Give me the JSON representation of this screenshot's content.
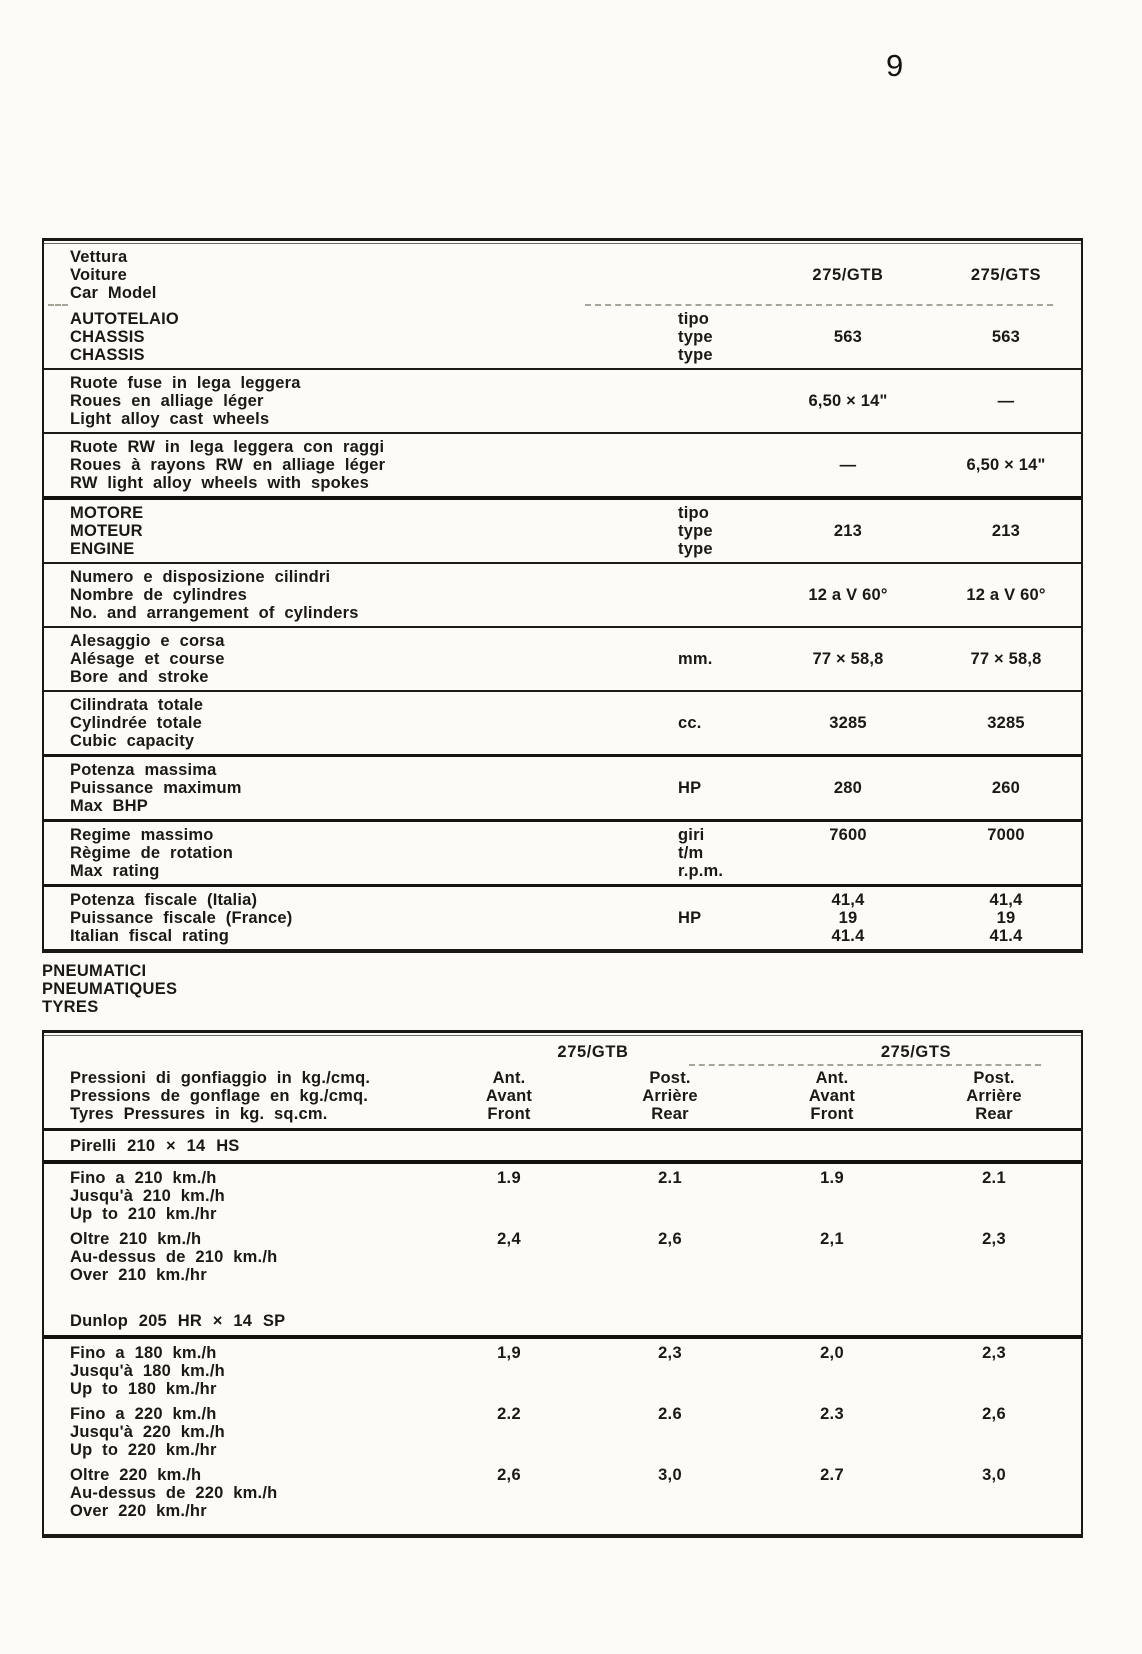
{
  "page_number": "9",
  "colors": {
    "ink": "#1a1915",
    "paper": "#fcfbf8",
    "faint": "#a8a499"
  },
  "spec_table": {
    "rows": [
      {
        "labels": [
          "Vettura",
          "Voiture",
          "Car Model"
        ],
        "units": [],
        "gtb": [
          "275/GTB"
        ],
        "gts": [
          "275/GTS"
        ],
        "sep": "dashed",
        "header": true
      },
      {
        "labels": [
          "AUTOTELAIO",
          "CHASSIS",
          "CHASSIS"
        ],
        "units": [
          "tipo",
          "type",
          "type"
        ],
        "gtb": [
          "563"
        ],
        "gts": [
          "563"
        ],
        "sep": "thin"
      },
      {
        "labels": [
          "Ruote fuse in lega leggera",
          "Roues en alliage léger",
          "Light alloy cast wheels"
        ],
        "units": [],
        "gtb": [
          "6,50 × 14\""
        ],
        "gts": [
          "—"
        ],
        "sep": "thin"
      },
      {
        "labels": [
          "Ruote RW in lega leggera con raggi",
          "Roues à rayons RW en alliage léger",
          "RW light alloy wheels with spokes"
        ],
        "units": [],
        "gtb": [
          "—"
        ],
        "gts": [
          "6,50 × 14\""
        ],
        "sep": "heavy"
      },
      {
        "labels": [
          "MOTORE",
          "MOTEUR",
          "ENGINE"
        ],
        "units": [
          "tipo",
          "type",
          "type"
        ],
        "gtb": [
          "213"
        ],
        "gts": [
          "213"
        ],
        "sep": "thin"
      },
      {
        "labels": [
          "Numero e disposizione cilindri",
          "Nombre de cylindres",
          "No. and arrangement of cylinders"
        ],
        "units": [],
        "gtb": [
          "12 a V 60°"
        ],
        "gts": [
          "12 a V 60°"
        ],
        "sep": "thin"
      },
      {
        "labels": [
          "Alesaggio e corsa",
          "Alésage et course",
          "Bore and stroke"
        ],
        "units": [
          "mm."
        ],
        "gtb": [
          "77 × 58,8"
        ],
        "gts": [
          "77 × 58,8"
        ],
        "sep": "thin"
      },
      {
        "labels": [
          "Cilindrata totale",
          "Cylindrée totale",
          "Cubic capacity"
        ],
        "units": [
          "cc."
        ],
        "gtb": [
          "3285"
        ],
        "gts": [
          "3285"
        ],
        "sep": "medium"
      },
      {
        "labels": [
          "Potenza massima",
          "Puissance maximum",
          "Max BHP"
        ],
        "units": [
          "HP"
        ],
        "gtb": [
          "280"
        ],
        "gts": [
          "260"
        ],
        "sep": "medium"
      },
      {
        "labels": [
          "Regime massimo",
          "Règime de rotation",
          "Max rating"
        ],
        "units": [
          "giri",
          "t/m",
          "r.p.m."
        ],
        "gtb": [
          "7600"
        ],
        "gts": [
          "7000"
        ],
        "sep": "medium",
        "value_align": "top"
      },
      {
        "labels": [
          "Potenza fiscale (Italia)",
          "Puissance fiscale (France)",
          "Italian fiscal rating"
        ],
        "units": [
          "HP"
        ],
        "gtb": [
          "41,4",
          "19",
          "41.4"
        ],
        "gts": [
          "41,4",
          "19",
          "41.4"
        ],
        "sep": "none"
      }
    ]
  },
  "tyres_heading": [
    "PNEUMATICI",
    "PNEUMATIQUES",
    "TYRES"
  ],
  "tyres_table": {
    "gtb_header": "275/GTB",
    "gts_header": "275/GTS",
    "pressure_labels": [
      "Pressioni di gonfiaggio in kg./cmq.",
      "Pressions de gonflage en kg./cmq.",
      "Tyres Pressures in kg. sq.cm."
    ],
    "col_headers": [
      [
        "Ant.",
        "Avant",
        "Front"
      ],
      [
        "Post.",
        "Arrière",
        "Rear"
      ],
      [
        "Ant.",
        "Avant",
        "Front"
      ],
      [
        "Post.",
        "Arrière",
        "Rear"
      ]
    ],
    "sections": [
      {
        "heading": "Pirelli 210 × 14 HS",
        "rows": [
          {
            "labels": [
              "Fino a 210 km./h",
              "Jusqu'à 210 km./h",
              "Up to 210 km./hr"
            ],
            "values": [
              "1.9",
              "2.1",
              "1.9",
              "2.1"
            ]
          },
          {
            "labels": [
              "Oltre 210 km./h",
              "Au-dessus de 210 km./h",
              "Over 210 km./hr"
            ],
            "values": [
              "2,4",
              "2,6",
              "2,1",
              "2,3"
            ]
          }
        ]
      },
      {
        "heading": "Dunlop 205 HR × 14 SP",
        "rows": [
          {
            "labels": [
              "Fino a 180 km./h",
              "Jusqu'à 180 km./h",
              "Up to 180 km./hr"
            ],
            "values": [
              "1,9",
              "2,3",
              "2,0",
              "2,3"
            ]
          },
          {
            "labels": [
              "Fino a 220 km./h",
              "Jusqu'à 220 km./h",
              "Up to 220 km./hr"
            ],
            "values": [
              "2.2",
              "2.6",
              "2.3",
              "2,6"
            ]
          },
          {
            "labels": [
              "Oltre 220 km./h",
              "Au-dessus de 220 km./h",
              "Over 220 km./hr"
            ],
            "values": [
              "2,6",
              "3,0",
              "2.7",
              "3,0"
            ]
          }
        ]
      }
    ]
  }
}
